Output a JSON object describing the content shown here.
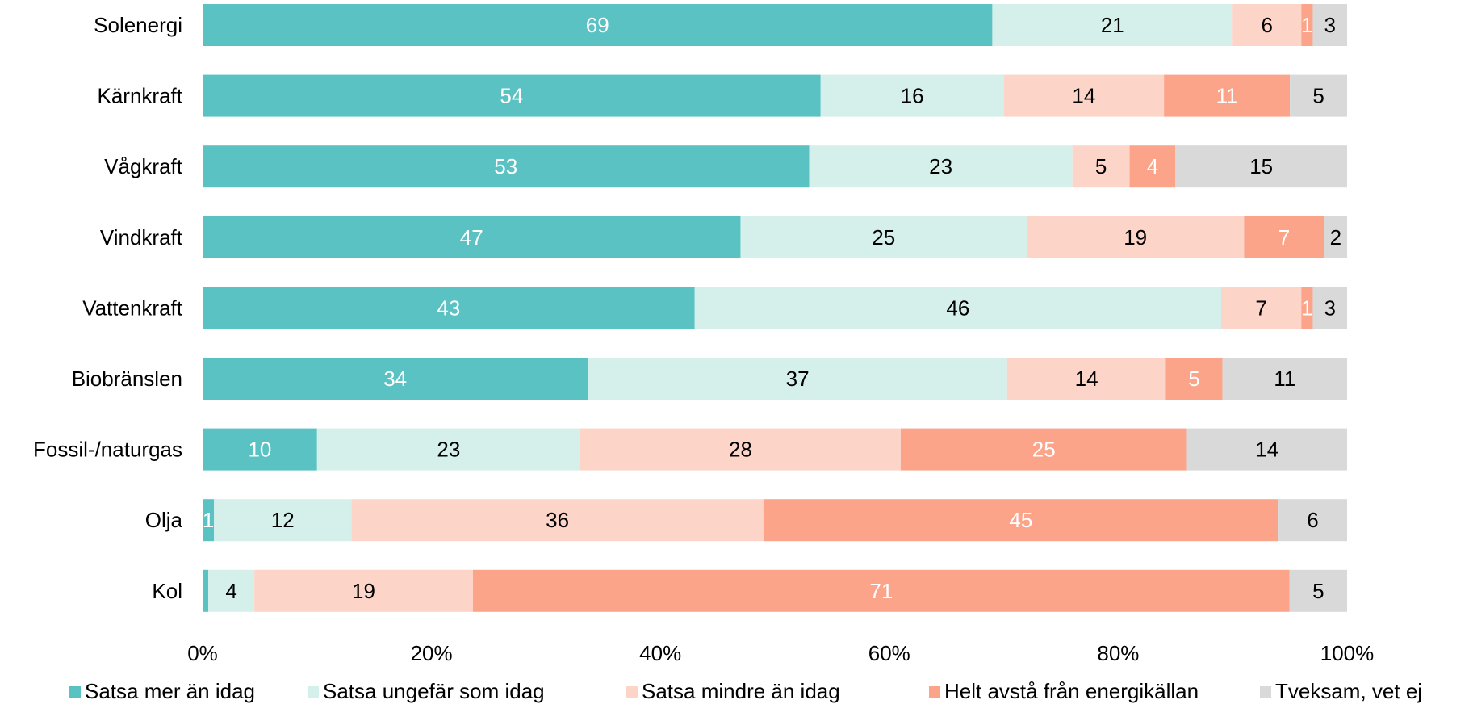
{
  "chart_data": {
    "type": "bar",
    "orientation": "horizontal",
    "stacked": "percent",
    "title": "",
    "xlabel": "",
    "ylabel": "",
    "xlim": [
      0,
      100
    ],
    "x_ticks": [
      "0%",
      "20%",
      "40%",
      "60%",
      "80%",
      "100%"
    ],
    "grid": false,
    "legend_position": "bottom",
    "categories": [
      "Solenergi",
      "Kärnkraft",
      "Vågkraft",
      "Vindkraft",
      "Vattenkraft",
      "Biobränslen",
      "Fossil-/naturgas",
      "Olja",
      "Kol"
    ],
    "series": [
      {
        "name": "Satsa mer än idag",
        "color": "#5bc2c4",
        "label_color": "#ffffff",
        "values": [
          69,
          54,
          53,
          47,
          43,
          34,
          10,
          1,
          0.5
        ],
        "labels": [
          "69",
          "54",
          "53",
          "47",
          "43",
          "34",
          "10",
          "1",
          ""
        ]
      },
      {
        "name": "Satsa ungefär som idag",
        "color": "#d5f0ea",
        "label_color": "#000000",
        "values": [
          21,
          16,
          23,
          25,
          46,
          37,
          23,
          12,
          4
        ],
        "labels": [
          "21",
          "16",
          "23",
          "25",
          "46",
          "37",
          "23",
          "12",
          "4"
        ]
      },
      {
        "name": "Satsa mindre än idag",
        "color": "#fdd5c8",
        "label_color": "#000000",
        "values": [
          6,
          14,
          5,
          19,
          7,
          14,
          28,
          36,
          19
        ],
        "labels": [
          "6",
          "14",
          "5",
          "19",
          "7",
          "14",
          "28",
          "36",
          "19"
        ]
      },
      {
        "name": "Helt avstå från energikällan",
        "color": "#fba48a",
        "label_color": "#ffffff",
        "values": [
          1,
          11,
          4,
          7,
          1,
          5,
          25,
          45,
          71
        ],
        "labels": [
          "1",
          "11",
          "4",
          "7",
          "1",
          "5",
          "25",
          "45",
          "71"
        ]
      },
      {
        "name": "Tveksam, vet ej",
        "color": "#d9d9d9",
        "label_color": "#000000",
        "values": [
          3,
          5,
          15,
          2,
          3,
          11,
          14,
          6,
          5
        ],
        "labels": [
          "3",
          "5",
          "15",
          "2",
          "3",
          "11",
          "14",
          "6",
          "5"
        ]
      }
    ]
  }
}
